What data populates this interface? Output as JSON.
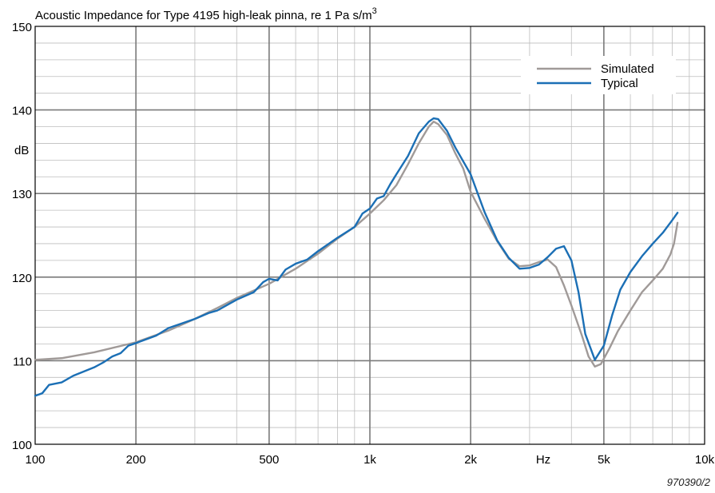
{
  "chart_data": {
    "type": "line",
    "title": "Acoustic Impedance for Type 4195 high-leak pinna, re 1 Pa s/m",
    "title_superscript": "3",
    "ylabel": "dB",
    "xlabel": "Hz",
    "x_scale": "log",
    "xlim": [
      100,
      10000
    ],
    "ylim": [
      100,
      150
    ],
    "grid": true,
    "legend_position": "top-right",
    "reference_code": "970390/2",
    "x_ticks": [
      {
        "value": 100,
        "label": "100"
      },
      {
        "value": 200,
        "label": "200"
      },
      {
        "value": 500,
        "label": "500"
      },
      {
        "value": 1000,
        "label": "1k"
      },
      {
        "value": 2000,
        "label": "2k"
      },
      {
        "value": 5000,
        "label": "5k"
      },
      {
        "value": 10000,
        "label": "10k"
      }
    ],
    "y_ticks": [
      {
        "value": 100,
        "label": "100"
      },
      {
        "value": 110,
        "label": "110"
      },
      {
        "value": 120,
        "label": "120"
      },
      {
        "value": 130,
        "label": "130"
      },
      {
        "value": 140,
        "label": "140"
      },
      {
        "value": 150,
        "label": "150"
      }
    ],
    "series": [
      {
        "name": "Simulated",
        "color": "#a09a98",
        "points": [
          [
            100,
            110.1
          ],
          [
            120,
            110.3
          ],
          [
            150,
            111.0
          ],
          [
            200,
            112.2
          ],
          [
            250,
            113.6
          ],
          [
            300,
            115.0
          ],
          [
            350,
            116.3
          ],
          [
            400,
            117.5
          ],
          [
            450,
            118.4
          ],
          [
            500,
            119.2
          ],
          [
            600,
            121.0
          ],
          [
            700,
            122.8
          ],
          [
            800,
            124.6
          ],
          [
            900,
            126.0
          ],
          [
            1000,
            127.6
          ],
          [
            1100,
            129.2
          ],
          [
            1200,
            131.0
          ],
          [
            1300,
            133.5
          ],
          [
            1400,
            136.0
          ],
          [
            1500,
            138.0
          ],
          [
            1550,
            138.6
          ],
          [
            1600,
            138.3
          ],
          [
            1700,
            137.0
          ],
          [
            1800,
            134.8
          ],
          [
            1900,
            133.0
          ],
          [
            2000,
            130.2
          ],
          [
            2200,
            127.0
          ],
          [
            2400,
            124.3
          ],
          [
            2600,
            122.2
          ],
          [
            2800,
            121.3
          ],
          [
            3000,
            121.4
          ],
          [
            3200,
            121.8
          ],
          [
            3400,
            122.1
          ],
          [
            3600,
            121.2
          ],
          [
            3800,
            119.0
          ],
          [
            4000,
            116.6
          ],
          [
            4300,
            113.0
          ],
          [
            4500,
            110.5
          ],
          [
            4700,
            109.3
          ],
          [
            4900,
            109.6
          ],
          [
            5200,
            111.5
          ],
          [
            5500,
            113.5
          ],
          [
            6000,
            116.0
          ],
          [
            6500,
            118.2
          ],
          [
            7000,
            119.6
          ],
          [
            7500,
            121.0
          ],
          [
            7900,
            122.7
          ],
          [
            8100,
            124.0
          ],
          [
            8300,
            126.5
          ]
        ]
      },
      {
        "name": "Typical",
        "color": "#1b6fb5",
        "points": [
          [
            100,
            105.8
          ],
          [
            105,
            106.1
          ],
          [
            110,
            107.1
          ],
          [
            120,
            107.4
          ],
          [
            130,
            108.2
          ],
          [
            150,
            109.2
          ],
          [
            160,
            109.8
          ],
          [
            170,
            110.5
          ],
          [
            180,
            110.9
          ],
          [
            190,
            111.8
          ],
          [
            200,
            112.1
          ],
          [
            230,
            113.0
          ],
          [
            250,
            113.9
          ],
          [
            300,
            115.0
          ],
          [
            330,
            115.7
          ],
          [
            350,
            116.0
          ],
          [
            400,
            117.3
          ],
          [
            450,
            118.2
          ],
          [
            480,
            119.4
          ],
          [
            500,
            119.8
          ],
          [
            530,
            119.6
          ],
          [
            560,
            120.9
          ],
          [
            600,
            121.6
          ],
          [
            650,
            122.1
          ],
          [
            700,
            123.1
          ],
          [
            800,
            124.7
          ],
          [
            900,
            126.0
          ],
          [
            950,
            127.6
          ],
          [
            1000,
            128.2
          ],
          [
            1050,
            129.4
          ],
          [
            1100,
            129.7
          ],
          [
            1150,
            131.1
          ],
          [
            1200,
            132.3
          ],
          [
            1300,
            134.5
          ],
          [
            1400,
            137.2
          ],
          [
            1500,
            138.6
          ],
          [
            1550,
            139.0
          ],
          [
            1600,
            138.9
          ],
          [
            1700,
            137.5
          ],
          [
            1800,
            135.5
          ],
          [
            2000,
            132.3
          ],
          [
            2200,
            127.8
          ],
          [
            2400,
            124.4
          ],
          [
            2600,
            122.3
          ],
          [
            2800,
            121.0
          ],
          [
            3000,
            121.1
          ],
          [
            3200,
            121.5
          ],
          [
            3400,
            122.4
          ],
          [
            3600,
            123.4
          ],
          [
            3800,
            123.7
          ],
          [
            4000,
            122.0
          ],
          [
            4200,
            118.2
          ],
          [
            4400,
            113.2
          ],
          [
            4700,
            110.1
          ],
          [
            5000,
            111.8
          ],
          [
            5300,
            115.5
          ],
          [
            5600,
            118.5
          ],
          [
            6000,
            120.6
          ],
          [
            6500,
            122.5
          ],
          [
            7000,
            124.0
          ],
          [
            7500,
            125.3
          ],
          [
            8000,
            126.8
          ],
          [
            8300,
            127.7
          ]
        ]
      }
    ]
  }
}
